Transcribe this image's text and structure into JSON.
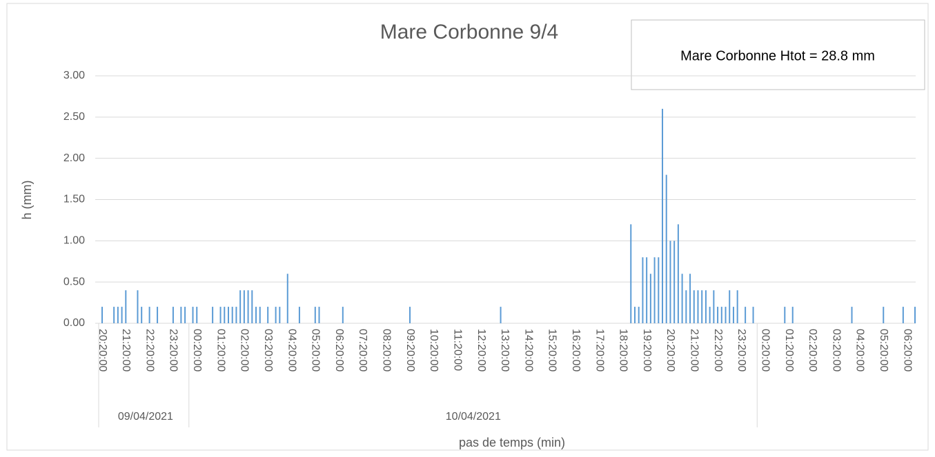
{
  "chart_data": {
    "type": "bar",
    "title": "Mare Corbonne 9/4",
    "annotation": "Mare Corbonne Htot = 28.8 mm",
    "y_label": "h (mm)",
    "x_label": "pas de temps (min)",
    "color": "#5b9bd5",
    "grid": true,
    "ylim": [
      0,
      3
    ],
    "yticks": [
      {
        "value": 0,
        "label": "0.00"
      },
      {
        "value": 0.5,
        "label": "0.50"
      },
      {
        "value": 1,
        "label": "1.00"
      },
      {
        "value": 1.5,
        "label": "1.50"
      },
      {
        "value": 2,
        "label": "2.00"
      },
      {
        "value": 2.5,
        "label": "2.50"
      },
      {
        "value": 3,
        "label": "3.00"
      }
    ],
    "xlim": [
      "2021-04-09T20:20",
      "2021-04-11T06:40"
    ],
    "xticks": [
      {
        "value": "2021-04-09T20:20",
        "label": "20:20:00"
      },
      {
        "value": "2021-04-09T21:20",
        "label": "21:20:00"
      },
      {
        "value": "2021-04-09T22:20",
        "label": "22:20:00"
      },
      {
        "value": "2021-04-09T23:20",
        "label": "23:20:00"
      },
      {
        "value": "2021-04-10T00:20",
        "label": "00:20:00"
      },
      {
        "value": "2021-04-10T01:20",
        "label": "01:20:00"
      },
      {
        "value": "2021-04-10T02:20",
        "label": "02:20:00"
      },
      {
        "value": "2021-04-10T03:20",
        "label": "03:20:00"
      },
      {
        "value": "2021-04-10T04:20",
        "label": "04:20:00"
      },
      {
        "value": "2021-04-10T05:20",
        "label": "05:20:00"
      },
      {
        "value": "2021-04-10T06:20",
        "label": "06:20:00"
      },
      {
        "value": "2021-04-10T07:20",
        "label": "07:20:00"
      },
      {
        "value": "2021-04-10T08:20",
        "label": "08:20:00"
      },
      {
        "value": "2021-04-10T09:20",
        "label": "09:20:00"
      },
      {
        "value": "2021-04-10T10:20",
        "label": "10:20:00"
      },
      {
        "value": "2021-04-10T11:20",
        "label": "11:20:00"
      },
      {
        "value": "2021-04-10T12:20",
        "label": "12:20:00"
      },
      {
        "value": "2021-04-10T13:20",
        "label": "13:20:00"
      },
      {
        "value": "2021-04-10T14:20",
        "label": "14:20:00"
      },
      {
        "value": "2021-04-10T15:20",
        "label": "15:20:00"
      },
      {
        "value": "2021-04-10T16:20",
        "label": "16:20:00"
      },
      {
        "value": "2021-04-10T17:20",
        "label": "17:20:00"
      },
      {
        "value": "2021-04-10T18:20",
        "label": "18:20:00"
      },
      {
        "value": "2021-04-10T19:20",
        "label": "19:20:00"
      },
      {
        "value": "2021-04-10T20:20",
        "label": "20:20:00"
      },
      {
        "value": "2021-04-10T21:20",
        "label": "21:20:00"
      },
      {
        "value": "2021-04-10T22:20",
        "label": "22:20:00"
      },
      {
        "value": "2021-04-10T23:20",
        "label": "23:20:00"
      },
      {
        "value": "2021-04-11T00:20",
        "label": "00:20:00"
      },
      {
        "value": "2021-04-11T01:20",
        "label": "01:20:00"
      },
      {
        "value": "2021-04-11T02:20",
        "label": "02:20:00"
      },
      {
        "value": "2021-04-11T03:20",
        "label": "03:20:00"
      },
      {
        "value": "2021-04-11T04:20",
        "label": "04:20:00"
      },
      {
        "value": "2021-04-11T05:20",
        "label": "05:20:00"
      },
      {
        "value": "2021-04-11T06:20",
        "label": "06:20:00"
      }
    ],
    "groups": [
      {
        "label": "09/04/2021",
        "start": "2021-04-09T20:20",
        "end": "2021-04-10T00:00"
      },
      {
        "label": "10/04/2021",
        "start": "2021-04-10T00:00",
        "end": "2021-04-11T00:00"
      }
    ],
    "x": [
      "2021-04-09T20:20",
      "2021-04-09T20:50",
      "2021-04-09T21:00",
      "2021-04-09T21:10",
      "2021-04-09T21:20",
      "2021-04-09T21:50",
      "2021-04-09T22:00",
      "2021-04-09T22:20",
      "2021-04-09T22:40",
      "2021-04-09T23:20",
      "2021-04-09T23:40",
      "2021-04-09T23:50",
      "2021-04-10T00:10",
      "2021-04-10T00:20",
      "2021-04-10T01:00",
      "2021-04-10T01:20",
      "2021-04-10T01:30",
      "2021-04-10T01:40",
      "2021-04-10T01:50",
      "2021-04-10T02:00",
      "2021-04-10T02:10",
      "2021-04-10T02:20",
      "2021-04-10T02:30",
      "2021-04-10T02:40",
      "2021-04-10T02:50",
      "2021-04-10T03:00",
      "2021-04-10T03:20",
      "2021-04-10T03:40",
      "2021-04-10T03:50",
      "2021-04-10T04:10",
      "2021-04-10T04:40",
      "2021-04-10T05:20",
      "2021-04-10T05:30",
      "2021-04-10T06:30",
      "2021-04-10T09:20",
      "2021-04-10T13:10",
      "2021-04-10T18:40",
      "2021-04-10T18:50",
      "2021-04-10T19:00",
      "2021-04-10T19:10",
      "2021-04-10T19:20",
      "2021-04-10T19:30",
      "2021-04-10T19:40",
      "2021-04-10T19:50",
      "2021-04-10T20:00",
      "2021-04-10T20:10",
      "2021-04-10T20:20",
      "2021-04-10T20:30",
      "2021-04-10T20:40",
      "2021-04-10T20:50",
      "2021-04-10T21:00",
      "2021-04-10T21:10",
      "2021-04-10T21:20",
      "2021-04-10T21:30",
      "2021-04-10T21:40",
      "2021-04-10T21:50",
      "2021-04-10T22:00",
      "2021-04-10T22:10",
      "2021-04-10T22:20",
      "2021-04-10T22:30",
      "2021-04-10T22:40",
      "2021-04-10T22:50",
      "2021-04-10T23:00",
      "2021-04-10T23:10",
      "2021-04-10T23:30",
      "2021-04-10T23:50",
      "2021-04-11T01:10",
      "2021-04-11T01:30",
      "2021-04-11T04:00",
      "2021-04-11T05:20",
      "2021-04-11T06:10",
      "2021-04-11T06:40"
    ],
    "values": [
      0.2,
      0.2,
      0.2,
      0.2,
      0.4,
      0.4,
      0.2,
      0.2,
      0.2,
      0.2,
      0.2,
      0.2,
      0.2,
      0.2,
      0.2,
      0.2,
      0.2,
      0.2,
      0.2,
      0.2,
      0.4,
      0.4,
      0.4,
      0.4,
      0.2,
      0.2,
      0.2,
      0.2,
      0.2,
      0.6,
      0.2,
      0.2,
      0.2,
      0.2,
      0.2,
      0.2,
      1.2,
      0.2,
      0.2,
      0.8,
      0.8,
      0.6,
      0.8,
      0.8,
      2.6,
      1.8,
      1.0,
      1.0,
      1.2,
      0.6,
      0.4,
      0.6,
      0.4,
      0.4,
      0.4,
      0.4,
      0.2,
      0.4,
      0.2,
      0.2,
      0.2,
      0.4,
      0.2,
      0.4,
      0.2,
      0.2,
      0.2,
      0.2,
      0.2,
      0.2,
      0.2,
      0.2
    ]
  }
}
